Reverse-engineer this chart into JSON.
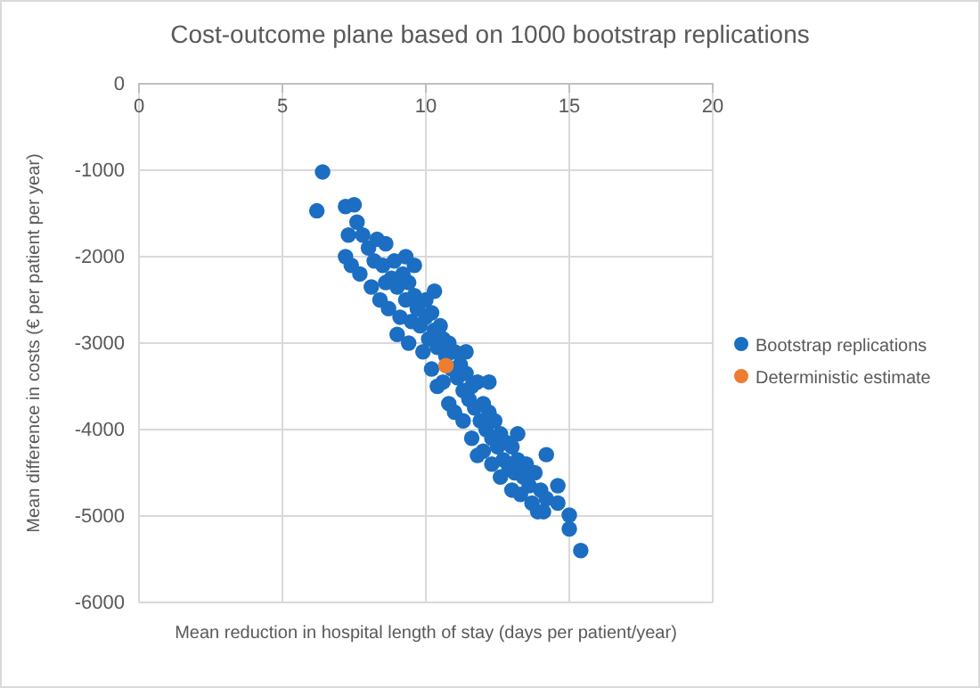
{
  "chart_data": {
    "type": "scatter",
    "title": "Cost-outcome plane based on 1000 bootstrap replications",
    "xlabel": "Mean reduction in hospital length of stay (days per patient/year)",
    "ylabel": "Mean difference in costs (€ per patient per year)",
    "xlim": [
      0,
      20
    ],
    "xticks": [
      0,
      5,
      10,
      15,
      20
    ],
    "ylim": [
      -6000,
      0
    ],
    "yticks": [
      -6000,
      -5000,
      -4000,
      -3000,
      -2000,
      -1000,
      0
    ],
    "grid": true,
    "legend": "right",
    "marker": "circle",
    "series": [
      {
        "name": "Bootstrap replications",
        "color": "#1b6ec2",
        "x": [
          6.2,
          6.4,
          7.2,
          7.5,
          7.6,
          7.3,
          7.2,
          7.4,
          7.8,
          8.0,
          8.2,
          7.7,
          8.3,
          8.5,
          8.1,
          8.4,
          8.6,
          8.8,
          8.9,
          9.0,
          8.7,
          9.2,
          9.3,
          9.1,
          9.0,
          9.4,
          9.6,
          9.5,
          9.7,
          9.4,
          9.8,
          10.0,
          10.0,
          10.1,
          9.9,
          10.2,
          10.3,
          10.4,
          10.2,
          10.5,
          10.6,
          10.4,
          10.7,
          10.8,
          10.9,
          10.6,
          11.0,
          11.1,
          10.8,
          11.2,
          11.3,
          11.0,
          11.4,
          11.5,
          11.6,
          11.3,
          11.7,
          11.8,
          11.9,
          11.6,
          12.0,
          12.1,
          12.2,
          12.0,
          12.3,
          12.4,
          12.5,
          12.3,
          12.6,
          12.7,
          12.8,
          12.6,
          12.9,
          13.0,
          13.1,
          13.2,
          13.0,
          13.4,
          13.5,
          13.3,
          13.6,
          13.8,
          13.2,
          12.2,
          11.4,
          9.6,
          8.6,
          13.7,
          14.0,
          14.2,
          14.1,
          14.2,
          14.6,
          15.0,
          15.0,
          15.4,
          13.9,
          10.3,
          11.8,
          9.3,
          14.6
        ],
        "values": [
          -1470,
          -1020,
          -1420,
          -1400,
          -1600,
          -1750,
          -2000,
          -2100,
          -1750,
          -1900,
          -2050,
          -2200,
          -1800,
          -2100,
          -2350,
          -2500,
          -2300,
          -2250,
          -2050,
          -2350,
          -2600,
          -2200,
          -2500,
          -2700,
          -2900,
          -2300,
          -2450,
          -2750,
          -2600,
          -3000,
          -2800,
          -2500,
          -2700,
          -2950,
          -3100,
          -2650,
          -2850,
          -3050,
          -3300,
          -2800,
          -2950,
          -3500,
          -3150,
          -3000,
          -3300,
          -3450,
          -3100,
          -3400,
          -3700,
          -3250,
          -3550,
          -3800,
          -3350,
          -3650,
          -3500,
          -3900,
          -3750,
          -3450,
          -3900,
          -4100,
          -3700,
          -4000,
          -3800,
          -4250,
          -4100,
          -3900,
          -4200,
          -4400,
          -4050,
          -4350,
          -4150,
          -4550,
          -4450,
          -4200,
          -4500,
          -4350,
          -4700,
          -4550,
          -4400,
          -4750,
          -4650,
          -4500,
          -4050,
          -3450,
          -3100,
          -2100,
          -1850,
          -4850,
          -4700,
          -4800,
          -4950,
          -4290,
          -4850,
          -4990,
          -5150,
          -5400,
          -4950,
          -2400,
          -4300,
          -2000,
          -4650
        ]
      },
      {
        "name": "Deterministic estimate",
        "color": "#ed7d31",
        "x": [
          10.7
        ],
        "values": [
          -3260
        ]
      }
    ]
  }
}
